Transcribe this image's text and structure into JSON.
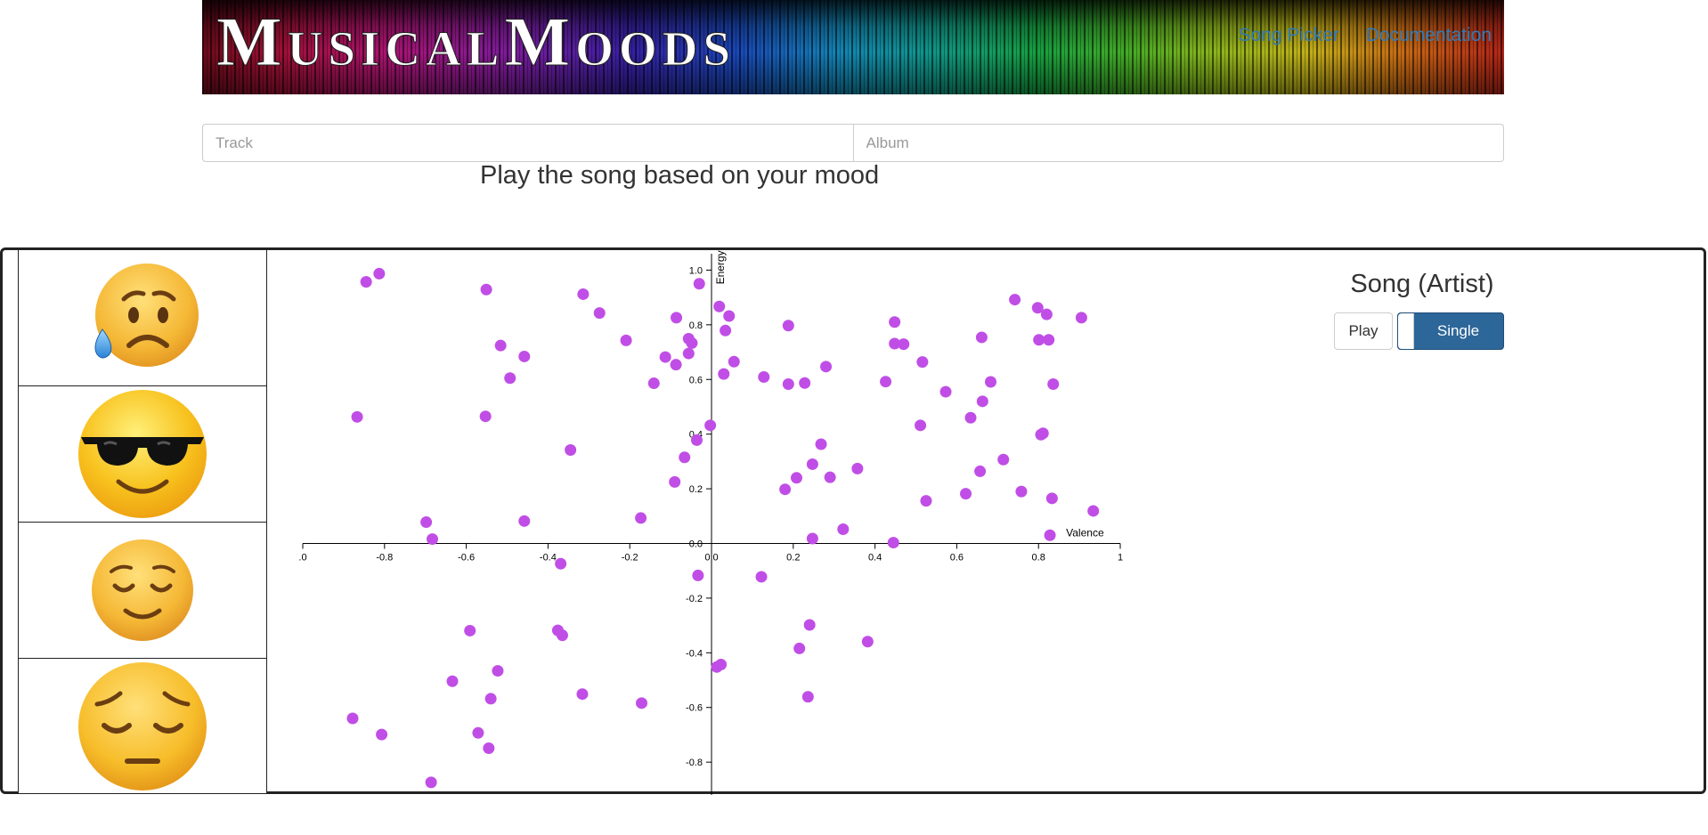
{
  "header": {
    "title": "MusicalMoods",
    "nav": [
      {
        "label": "Song Picker"
      },
      {
        "label": "Documentation"
      }
    ]
  },
  "search": {
    "track_placeholder": "Track",
    "album_placeholder": "Album"
  },
  "subtitle": "Play the song based on your mood",
  "moods": [
    {
      "icon": "sad-sweat-face-icon"
    },
    {
      "icon": "sunglasses-face-icon"
    },
    {
      "icon": "relieved-face-icon"
    },
    {
      "icon": "pensive-face-icon"
    }
  ],
  "player": {
    "song_label": "Song (Artist)",
    "play_label": "Play",
    "mode_label": "Single"
  },
  "colors": {
    "point": "#c04ee6",
    "toggle": "#2d6699",
    "link": "#337ab7"
  },
  "chart_data": {
    "type": "scatter",
    "xlabel": "Valence",
    "ylabel": "Energy",
    "xlim": [
      -1,
      1
    ],
    "ylim": [
      -0.92,
      1.06
    ],
    "xticks": [
      ".0",
      "-0.8",
      "-0.6",
      "-0.4",
      "-0.2",
      "0.0",
      "0.2",
      "0.4",
      "0.6",
      "0.8",
      "1"
    ],
    "yticks": [
      "1.0",
      "0.8",
      "0.6",
      "0.4",
      "0.2",
      "0.0",
      "-0.2",
      "-0.4",
      "-0.6",
      "-0.8"
    ],
    "points": [
      [
        -0.813,
        0.987
      ],
      [
        -0.845,
        0.957
      ],
      [
        -0.551,
        0.929
      ],
      [
        -0.314,
        0.912
      ],
      [
        -0.274,
        0.843
      ],
      [
        -0.209,
        0.743
      ],
      [
        -0.086,
        0.826
      ],
      [
        -0.516,
        0.724
      ],
      [
        -0.458,
        0.684
      ],
      [
        -0.493,
        0.605
      ],
      [
        -0.113,
        0.682
      ],
      [
        -0.087,
        0.654
      ],
      [
        -0.056,
        0.749
      ],
      [
        -0.048,
        0.733
      ],
      [
        -0.056,
        0.695
      ],
      [
        -0.141,
        0.586
      ],
      [
        -0.03,
        0.95
      ],
      [
        0.019,
        0.867
      ],
      [
        0.043,
        0.832
      ],
      [
        0.034,
        0.779
      ],
      [
        0.055,
        0.665
      ],
      [
        0.03,
        0.62
      ],
      [
        0.128,
        0.609
      ],
      [
        0.188,
        0.797
      ],
      [
        0.448,
        0.81
      ],
      [
        0.448,
        0.731
      ],
      [
        0.47,
        0.729
      ],
      [
        0.28,
        0.647
      ],
      [
        0.228,
        0.587
      ],
      [
        0.188,
        0.583
      ],
      [
        0.426,
        0.592
      ],
      [
        0.516,
        0.664
      ],
      [
        0.573,
        0.555
      ],
      [
        0.661,
        0.754
      ],
      [
        0.742,
        0.892
      ],
      [
        0.798,
        0.862
      ],
      [
        0.82,
        0.838
      ],
      [
        0.905,
        0.826
      ],
      [
        0.801,
        0.745
      ],
      [
        0.825,
        0.745
      ],
      [
        0.836,
        0.583
      ],
      [
        0.683,
        0.591
      ],
      [
        0.663,
        0.52
      ],
      [
        0.634,
        0.46
      ],
      [
        0.511,
        0.432
      ],
      [
        0.806,
        0.398
      ],
      [
        0.811,
        0.403
      ],
      [
        0.714,
        0.307
      ],
      [
        0.657,
        0.264
      ],
      [
        0.622,
        0.182
      ],
      [
        0.758,
        0.19
      ],
      [
        0.833,
        0.165
      ],
      [
        0.934,
        0.119
      ],
      [
        0.828,
        0.03
      ],
      [
        0.445,
        0.003
      ],
      [
        0.525,
        0.156
      ],
      [
        0.357,
        0.274
      ],
      [
        0.268,
        0.363
      ],
      [
        0.247,
        0.29
      ],
      [
        0.29,
        0.242
      ],
      [
        0.208,
        0.24
      ],
      [
        0.18,
        0.198
      ],
      [
        0.247,
        0.018
      ],
      [
        0.322,
        0.052
      ],
      [
        -0.003,
        0.432
      ],
      [
        -0.036,
        0.378
      ],
      [
        -0.066,
        0.315
      ],
      [
        -0.09,
        0.225
      ],
      [
        -0.173,
        0.093
      ],
      [
        -0.345,
        0.342
      ],
      [
        -0.553,
        0.465
      ],
      [
        -0.867,
        0.463
      ],
      [
        -0.698,
        0.078
      ],
      [
        -0.683,
        0.016
      ],
      [
        -0.458,
        0.082
      ],
      [
        -0.369,
        -0.074
      ],
      [
        -0.033,
        -0.117
      ],
      [
        0.122,
        -0.122
      ],
      [
        0.24,
        -0.298
      ],
      [
        0.215,
        -0.384
      ],
      [
        0.382,
        -0.359
      ],
      [
        0.023,
        -0.443
      ],
      [
        0.013,
        -0.452
      ],
      [
        0.236,
        -0.561
      ],
      [
        -0.591,
        -0.319
      ],
      [
        -0.376,
        -0.318
      ],
      [
        -0.365,
        -0.336
      ],
      [
        -0.523,
        -0.466
      ],
      [
        -0.634,
        -0.504
      ],
      [
        -0.54,
        -0.568
      ],
      [
        -0.316,
        -0.551
      ],
      [
        -0.171,
        -0.584
      ],
      [
        -0.571,
        -0.693
      ],
      [
        -0.545,
        -0.749
      ],
      [
        -0.807,
        -0.699
      ],
      [
        -0.878,
        -0.64
      ],
      [
        -0.686,
        -0.874
      ]
    ]
  }
}
